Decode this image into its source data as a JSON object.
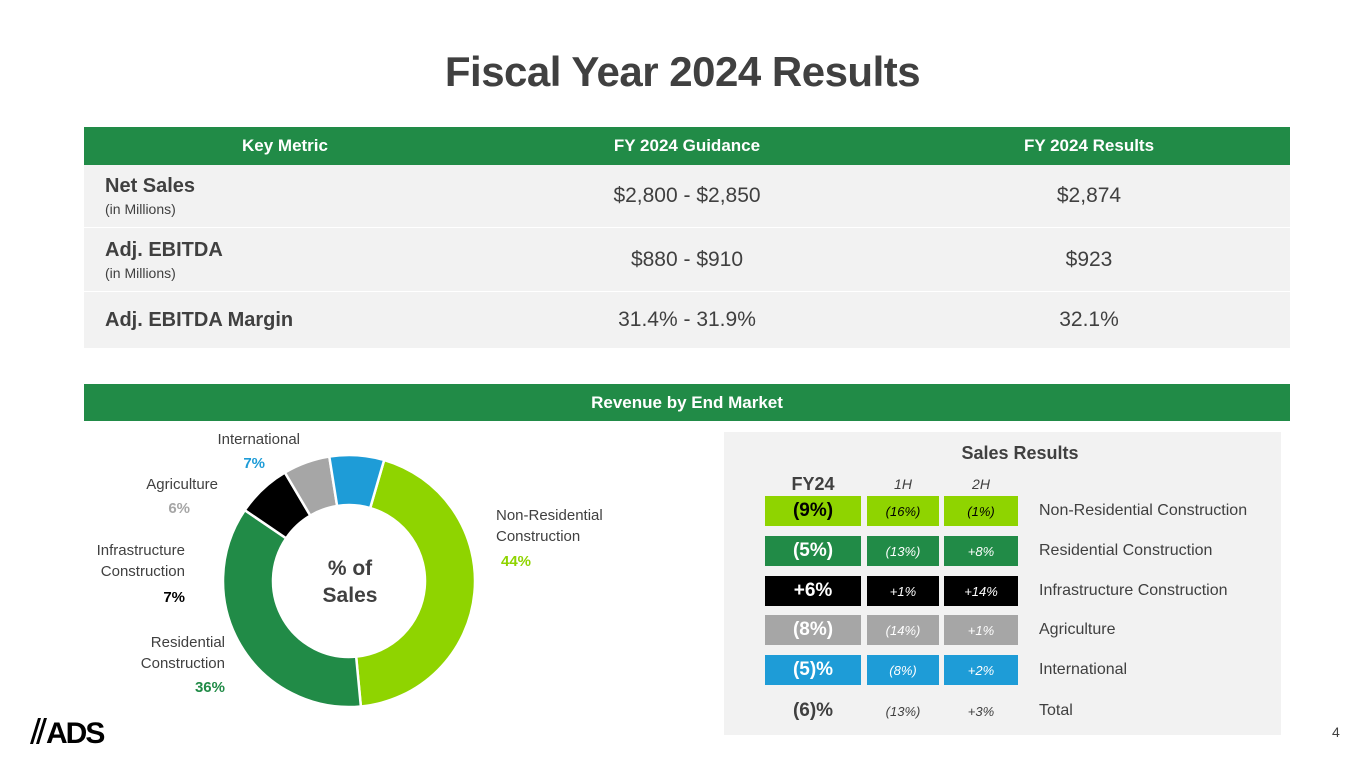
{
  "title": "Fiscal Year 2024 Results",
  "metrics": {
    "headers": [
      "Key Metric",
      "FY 2024 Guidance",
      "FY 2024 Results"
    ],
    "rows": [
      {
        "name": "Net Sales",
        "sub": "(in Millions)",
        "guidance": "$2,800 - $2,850",
        "result": "$2,874"
      },
      {
        "name": "Adj. EBITDA",
        "sub": "(in Millions)",
        "guidance": "$880 - $910",
        "result": "$923"
      },
      {
        "name": "Adj. EBITDA Margin",
        "sub": "",
        "guidance": "31.4% - 31.9%",
        "result": "32.1%"
      }
    ]
  },
  "revenue_section": "Revenue by End Market",
  "chart_data": {
    "type": "pie",
    "center_label_line1": "% of",
    "center_label_line2": "Sales",
    "slices": [
      {
        "name": "Non-Residential Construction",
        "label_line1": "Non-Residential",
        "label_line2": "Construction",
        "pct_label": "44%",
        "value": 44,
        "color": "#8fd400"
      },
      {
        "name": "Residential Construction",
        "label_line1": "Residential",
        "label_line2": "Construction",
        "pct_label": "36%",
        "value": 36,
        "color": "#218b47"
      },
      {
        "name": "Infrastructure Construction",
        "label_line1": "Infrastructure",
        "label_line2": "Construction",
        "pct_label": "7%",
        "value": 7,
        "color": "#000000"
      },
      {
        "name": "Agriculture",
        "label_line1": "Agriculture",
        "label_line2": "",
        "pct_label": "6%",
        "value": 6,
        "color": "#a6a6a6"
      },
      {
        "name": "International",
        "label_line1": "International",
        "label_line2": "",
        "pct_label": "7%",
        "value": 7,
        "color": "#1e9cd7"
      }
    ]
  },
  "sales_results": {
    "title": "Sales Results",
    "col_fy": "FY24",
    "col_1h": "1H",
    "col_2h": "2H",
    "rows": [
      {
        "label": "Non-Residential Construction",
        "fy": "(9%)",
        "h1": "(16%)",
        "h2": "(1%)",
        "color": "#8fd400",
        "text_color": "#000000"
      },
      {
        "label": "Residential Construction",
        "fy": "(5%)",
        "h1": "(13%)",
        "h2": "+8%",
        "color": "#218b47",
        "text_color": "#ffffff"
      },
      {
        "label": "Infrastructure Construction",
        "fy": "+6%",
        "h1": "+1%",
        "h2": "+14%",
        "color": "#000000",
        "text_color": "#ffffff"
      },
      {
        "label": "Agriculture",
        "fy": "(8%)",
        "h1": "(14%)",
        "h2": "+1%",
        "color": "#a6a6a6",
        "text_color": "#ffffff"
      },
      {
        "label": "International",
        "fy": "(5)%",
        "h1": "(8%)",
        "h2": "+2%",
        "color": "#1e9cd7",
        "text_color": "#ffffff"
      },
      {
        "label": "Total",
        "fy": "(6)%",
        "h1": "(13%)",
        "h2": "+3%",
        "color": "",
        "text_color": "#404040"
      }
    ]
  },
  "logo_text": "ADS",
  "page_number": "4"
}
